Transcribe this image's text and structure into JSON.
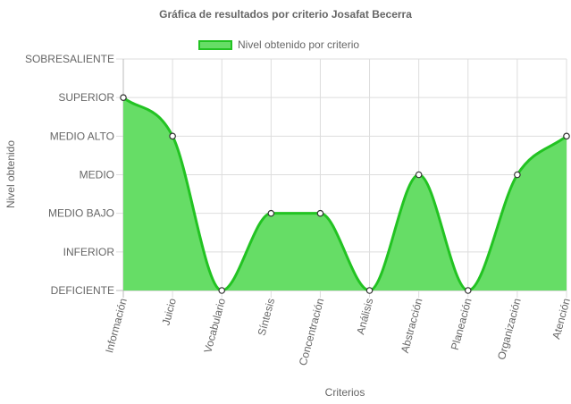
{
  "chart_data": {
    "type": "area",
    "title": "Gráfica de resultados por criterio Josafat Becerra",
    "xlabel": "Criterios",
    "ylabel": "Nivel obtenido",
    "levels": [
      "DEFICIENTE",
      "INFERIOR",
      "MEDIO BAJO",
      "MEDIO",
      "MEDIO ALTO",
      "SUPERIOR",
      "SOBRESALIENTE"
    ],
    "categories": [
      "Información",
      "Juicio",
      "Vocabulario",
      "Síntesis",
      "Concentración",
      "Análisis",
      "Abstracción",
      "Planeación",
      "Organización",
      "Atención"
    ],
    "series": [
      {
        "name": "Nivel obtenido por criterio",
        "values": [
          "SUPERIOR",
          "MEDIO ALTO",
          "DEFICIENTE",
          "MEDIO BAJO",
          "MEDIO BAJO",
          "DEFICIENTE",
          "MEDIO",
          "DEFICIENTE",
          "MEDIO",
          "MEDIO ALTO"
        ],
        "fill_color": "#66dd66",
        "line_color": "#22c322"
      }
    ],
    "grid": true,
    "legend_position": "top"
  }
}
